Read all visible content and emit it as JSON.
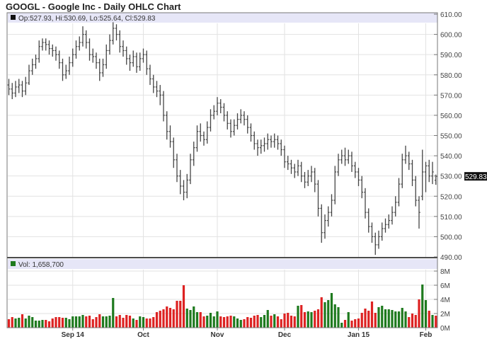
{
  "title": "GOOGL - Google Inc - Daily OHLC Chart",
  "price_legend": "Op:527.93, Hi:530.69, Lo:525.64, Cl:529.83",
  "volume_legend": "Vol: 1,658,700",
  "colors": {
    "bar": "#444444",
    "up": "#1e7a1e",
    "down": "#dd2222",
    "band": "#e6e6f7",
    "grid": "#e2e2e2",
    "last_price_bg": "#111111"
  },
  "chart_data": [
    {
      "type": "ohlc",
      "title": "GOOGL - Google Inc - Daily OHLC Chart",
      "ylim": [
        490,
        610
      ],
      "y_ticks": [
        "610.00",
        "600.00",
        "590.00",
        "580.00",
        "570.00",
        "560.00",
        "550.00",
        "540.00",
        "530.00",
        "520.00",
        "510.00",
        "500.00",
        "490.00"
      ],
      "last_price_label": "529.83",
      "x_tick_labels": [
        {
          "label": "Sep 14",
          "index": 19
        },
        {
          "label": "Oct",
          "index": 40
        },
        {
          "label": "Nov",
          "index": 62
        },
        {
          "label": "Dec",
          "index": 82
        },
        {
          "label": "Jan 15",
          "index": 104
        },
        {
          "label": "Feb",
          "index": 124
        }
      ],
      "ohlc": [
        [
          575,
          578,
          570,
          573
        ],
        [
          573,
          576,
          568,
          571
        ],
        [
          571,
          577,
          569,
          574
        ],
        [
          574,
          578,
          571,
          575
        ],
        [
          575,
          577,
          569,
          572
        ],
        [
          572,
          579,
          570,
          576
        ],
        [
          576,
          585,
          575,
          582
        ],
        [
          582,
          588,
          580,
          585
        ],
        [
          585,
          590,
          583,
          588
        ],
        [
          588,
          597,
          586,
          594
        ],
        [
          594,
          598,
          592,
          596
        ],
        [
          596,
          598,
          592,
          595
        ],
        [
          595,
          597,
          590,
          593
        ],
        [
          593,
          595,
          589,
          592
        ],
        [
          592,
          594,
          587,
          590
        ],
        [
          590,
          592,
          583,
          586
        ],
        [
          586,
          588,
          577,
          580
        ],
        [
          580,
          585,
          578,
          582
        ],
        [
          582,
          589,
          580,
          586
        ],
        [
          586,
          593,
          584,
          590
        ],
        [
          590,
          597,
          588,
          594
        ],
        [
          594,
          599,
          592,
          596
        ],
        [
          596,
          604,
          594,
          600
        ],
        [
          600,
          602,
          593,
          596
        ],
        [
          596,
          598,
          587,
          590
        ],
        [
          590,
          593,
          586,
          589
        ],
        [
          589,
          591,
          583,
          586
        ],
        [
          586,
          588,
          577,
          581
        ],
        [
          581,
          588,
          579,
          585
        ],
        [
          585,
          595,
          583,
          592
        ],
        [
          592,
          600,
          590,
          597
        ],
        [
          597,
          606,
          595,
          603
        ],
        [
          603,
          605,
          597,
          600
        ],
        [
          600,
          602,
          591,
          594
        ],
        [
          594,
          597,
          589,
          592
        ],
        [
          592,
          594,
          585,
          588
        ],
        [
          588,
          590,
          582,
          586
        ],
        [
          586,
          592,
          584,
          589
        ],
        [
          589,
          591,
          581,
          584
        ],
        [
          584,
          591,
          582,
          588
        ],
        [
          588,
          593,
          586,
          590
        ],
        [
          590,
          592,
          580,
          583
        ],
        [
          583,
          585,
          575,
          578
        ],
        [
          578,
          580,
          571,
          574
        ],
        [
          574,
          577,
          569,
          572
        ],
        [
          572,
          575,
          565,
          570
        ],
        [
          570,
          572,
          557,
          560
        ],
        [
          560,
          562,
          548,
          552
        ],
        [
          552,
          555,
          544,
          547
        ],
        [
          547,
          549,
          534,
          538
        ],
        [
          538,
          541,
          527,
          530
        ],
        [
          530,
          533,
          521,
          525
        ],
        [
          525,
          528,
          518,
          522
        ],
        [
          522,
          531,
          519,
          528
        ],
        [
          528,
          541,
          526,
          538
        ],
        [
          538,
          547,
          535,
          544
        ],
        [
          544,
          555,
          542,
          552
        ],
        [
          552,
          556,
          547,
          550
        ],
        [
          550,
          552,
          545,
          548
        ],
        [
          548,
          557,
          546,
          554
        ],
        [
          554,
          563,
          552,
          560
        ],
        [
          560,
          565,
          558,
          562
        ],
        [
          562,
          569,
          560,
          566
        ],
        [
          566,
          568,
          561,
          564
        ],
        [
          564,
          566,
          557,
          560
        ],
        [
          560,
          562,
          553,
          556
        ],
        [
          556,
          558,
          549,
          552
        ],
        [
          552,
          558,
          550,
          555
        ],
        [
          555,
          561,
          553,
          558
        ],
        [
          558,
          563,
          556,
          560
        ],
        [
          560,
          562,
          555,
          558
        ],
        [
          558,
          560,
          551,
          554
        ],
        [
          554,
          556,
          547,
          550
        ],
        [
          550,
          552,
          543,
          546
        ],
        [
          546,
          548,
          540,
          544
        ],
        [
          544,
          548,
          541,
          545
        ],
        [
          545,
          549,
          542,
          546
        ],
        [
          546,
          551,
          543,
          548
        ],
        [
          548,
          550,
          544,
          547
        ],
        [
          547,
          551,
          544,
          548
        ],
        [
          548,
          550,
          543,
          546
        ],
        [
          546,
          548,
          540,
          543
        ],
        [
          543,
          545,
          534,
          537
        ],
        [
          537,
          540,
          533,
          536
        ],
        [
          536,
          538,
          531,
          534
        ],
        [
          534,
          536,
          529,
          532
        ],
        [
          532,
          538,
          530,
          535
        ],
        [
          535,
          537,
          527,
          530
        ],
        [
          530,
          532,
          524,
          527
        ],
        [
          527,
          533,
          525,
          530
        ],
        [
          530,
          535,
          527,
          532
        ],
        [
          532,
          534,
          522,
          526
        ],
        [
          526,
          528,
          510,
          514
        ],
        [
          514,
          516,
          497,
          502
        ],
        [
          502,
          511,
          499,
          508
        ],
        [
          508,
          515,
          505,
          512
        ],
        [
          512,
          521,
          510,
          518
        ],
        [
          518,
          535,
          516,
          532
        ],
        [
          532,
          541,
          530,
          538
        ],
        [
          538,
          543,
          536,
          540
        ],
        [
          540,
          544,
          535,
          538
        ],
        [
          538,
          543,
          536,
          540
        ],
        [
          540,
          542,
          532,
          535
        ],
        [
          535,
          537,
          529,
          532
        ],
        [
          532,
          534,
          525,
          528
        ],
        [
          528,
          530,
          519,
          522
        ],
        [
          522,
          524,
          509,
          512
        ],
        [
          512,
          514,
          502,
          505
        ],
        [
          505,
          507,
          497,
          500
        ],
        [
          500,
          502,
          491,
          496
        ],
        [
          496,
          503,
          494,
          500
        ],
        [
          500,
          507,
          498,
          504
        ],
        [
          504,
          509,
          502,
          506
        ],
        [
          506,
          511,
          504,
          508
        ],
        [
          508,
          515,
          506,
          512
        ],
        [
          512,
          520,
          510,
          517
        ],
        [
          517,
          529,
          515,
          526
        ],
        [
          526,
          541,
          524,
          538
        ],
        [
          538,
          545,
          536,
          540
        ],
        [
          540,
          542,
          533,
          536
        ],
        [
          536,
          538,
          525,
          528
        ],
        [
          528,
          530,
          515,
          518
        ],
        [
          518,
          520,
          504,
          512
        ],
        [
          520,
          543,
          518,
          532
        ],
        [
          532,
          537,
          522,
          535
        ],
        [
          535,
          538,
          527,
          530
        ],
        [
          530,
          537,
          526,
          532
        ],
        [
          527.93,
          530.69,
          525.64,
          529.83
        ]
      ]
    },
    {
      "type": "bar",
      "ylim": [
        0,
        8
      ],
      "y_unit": "M",
      "y_ticks": [
        "8M",
        "6M",
        "4M",
        "2M",
        "0M"
      ],
      "volume_millions": [
        1.2,
        1.5,
        1.3,
        1.4,
        1.9,
        1.3,
        1.7,
        1.5,
        1.0,
        1.0,
        1.1,
        1.1,
        0.9,
        1.3,
        1.5,
        1.5,
        1.4,
        1.4,
        1.2,
        1.6,
        1.6,
        1.6,
        1.8,
        1.6,
        1.7,
        1.2,
        1.5,
        1.9,
        1.6,
        1.6,
        1.7,
        4.2,
        1.6,
        1.8,
        1.4,
        1.8,
        1.7,
        1.3,
        1.1,
        1.6,
        1.5,
        1.3,
        1.3,
        1.5,
        2.2,
        2.4,
        2.6,
        3.0,
        2.8,
        2.6,
        3.8,
        3.8,
        6.0,
        2.7,
        2.5,
        3.0,
        2.2,
        2.2,
        1.6,
        1.7,
        2.1,
        1.6,
        2.3,
        1.6,
        1.5,
        1.6,
        1.7,
        1.6,
        1.3,
        1.1,
        1.2,
        1.5,
        1.4,
        1.7,
        1.8,
        1.5,
        1.8,
        2.5,
        1.7,
        1.9,
        1.6,
        1.2,
        2.0,
        2.1,
        1.7,
        1.6,
        3.1,
        3.2,
        2.2,
        2.3,
        2.2,
        2.4,
        2.6,
        4.3,
        3.6,
        3.9,
        4.9,
        3.3,
        2.9,
        0.7,
        1.1,
        2.2,
        1.0,
        1.2,
        1.3,
        2.1,
        2.7,
        2.4,
        3.7,
        2.1,
        2.9,
        3.1,
        2.6,
        2.6,
        2.5,
        2.3,
        2.3,
        2.8,
        2.3,
        1.5,
        2.0,
        1.8,
        4.0,
        6.1,
        3.9,
        2.4,
        1.8,
        1.7
      ]
    }
  ]
}
